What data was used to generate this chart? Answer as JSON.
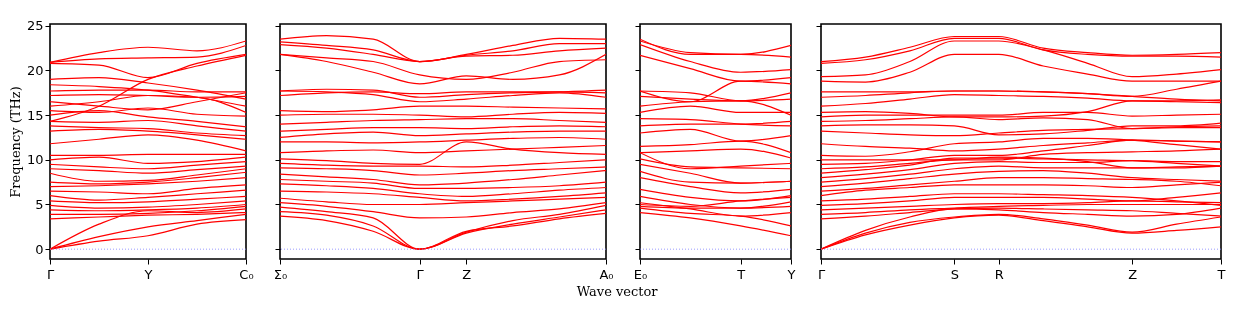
{
  "chart_data": [
    {
      "type": "line",
      "ylabel": "Frequency (THz)",
      "categories": [
        "Γ",
        null,
        "Y",
        null,
        "C₀"
      ],
      "ylim": [
        -1.1,
        25.2
      ],
      "yticks": [
        0,
        5,
        10,
        15,
        20,
        25
      ],
      "grid": false,
      "ref_lines": [
        {
          "axis": "y",
          "value": 0,
          "color": "#8080ff",
          "line_style": "dotted"
        }
      ],
      "series": [
        {
          "color": "#ff0000",
          "values": [
            0,
            0.9,
            1.5,
            2.8,
            3.3
          ]
        },
        {
          "color": "#ff0000",
          "values": [
            0,
            1.4,
            2.5,
            3.2,
            3.9
          ]
        },
        {
          "color": "#ff0000",
          "values": [
            0,
            2.8,
            4.3,
            4.1,
            4.5
          ]
        },
        {
          "color": "#ff0000",
          "values": [
            3.4,
            3.6,
            3.8,
            3.9,
            4.1
          ]
        },
        {
          "color": "#ff0000",
          "values": [
            3.9,
            3.9,
            4.0,
            4.3,
            4.8
          ]
        },
        {
          "color": "#ff0000",
          "values": [
            4.4,
            4.3,
            4.4,
            4.6,
            5.0
          ]
        },
        {
          "color": "#ff0000",
          "values": [
            4.9,
            4.6,
            4.7,
            5.0,
            5.4
          ]
        },
        {
          "color": "#ff0000",
          "values": [
            5.4,
            5.2,
            5.3,
            5.6,
            5.9
          ]
        },
        {
          "color": "#ff0000",
          "values": [
            6.0,
            5.5,
            5.8,
            6.2,
            6.6
          ]
        },
        {
          "color": "#ff0000",
          "values": [
            6.5,
            6.4,
            6.2,
            6.8,
            7.2
          ]
        },
        {
          "color": "#ff0000",
          "values": [
            7.0,
            7.1,
            7.3,
            7.6,
            8.0
          ]
        },
        {
          "color": "#ff0000",
          "values": [
            7.5,
            7.3,
            7.5,
            8.0,
            8.6
          ]
        },
        {
          "color": "#ff0000",
          "values": [
            8.5,
            7.6,
            7.7,
            8.3,
            9.0
          ]
        },
        {
          "color": "#ff0000",
          "values": [
            9.0,
            8.8,
            8.5,
            8.9,
            9.3
          ]
        },
        {
          "color": "#ff0000",
          "values": [
            9.5,
            9.2,
            9.0,
            9.4,
            9.8
          ]
        },
        {
          "color": "#ff0000",
          "values": [
            10.0,
            10.3,
            9.6,
            9.8,
            10.3
          ]
        },
        {
          "color": "#ff0000",
          "values": [
            10.5,
            10.5,
            10.6,
            10.6,
            10.6
          ]
        },
        {
          "color": "#ff0000",
          "values": [
            11.8,
            12.3,
            12.8,
            12.2,
            11.0
          ]
        },
        {
          "color": "#ff0000",
          "values": [
            13.2,
            13.4,
            13.2,
            12.8,
            12.3
          ]
        },
        {
          "color": "#ff0000",
          "values": [
            13.8,
            13.6,
            13.5,
            13.0,
            12.7
          ]
        },
        {
          "color": "#ff0000",
          "values": [
            14.3,
            14.2,
            14.4,
            13.8,
            13.2
          ]
        },
        {
          "color": "#ff0000",
          "values": [
            14.3,
            16.0,
            19.0,
            20.5,
            21.7
          ]
        },
        {
          "color": "#ff0000",
          "values": [
            15.0,
            15.5,
            14.8,
            14.3,
            13.7
          ]
        },
        {
          "color": "#ff0000",
          "values": [
            15.5,
            15.3,
            15.8,
            15.1,
            14.9
          ]
        },
        {
          "color": "#ff0000",
          "values": [
            16.0,
            16.5,
            17.2,
            17.0,
            15.3
          ]
        },
        {
          "color": "#ff0000",
          "values": [
            16.5,
            16.0,
            15.6,
            16.5,
            17.5
          ]
        },
        {
          "color": "#ff0000",
          "values": [
            17.2,
            17.3,
            17.2,
            17.0,
            17.1
          ]
        },
        {
          "color": "#ff0000",
          "values": [
            17.7,
            17.8,
            17.8,
            17.6,
            17.6
          ]
        },
        {
          "color": "#ff0000",
          "values": [
            18.4,
            18.2,
            17.8,
            17.0,
            16.0
          ]
        },
        {
          "color": "#ff0000",
          "values": [
            19.0,
            19.2,
            18.6,
            17.8,
            16.8
          ]
        },
        {
          "color": "#ff0000",
          "values": [
            20.8,
            20.6,
            19.2,
            20.8,
            21.8
          ]
        },
        {
          "color": "#ff0000",
          "values": [
            20.9,
            21.3,
            21.4,
            21.5,
            22.8
          ]
        },
        {
          "color": "#ff0000",
          "values": [
            20.9,
            22.0,
            22.6,
            22.2,
            23.3
          ]
        }
      ]
    },
    {
      "type": "line",
      "xlabel": "Wave vector",
      "categories": [
        "Σ₀",
        null,
        null,
        "Γ",
        "Z",
        null,
        null,
        "A₀"
      ],
      "ylim": [
        -1.1,
        25.2
      ],
      "yticks": [
        0,
        5,
        10,
        15,
        20,
        25
      ],
      "tick_labels": "x",
      "grid": false,
      "ref_lines": [
        {
          "axis": "y",
          "value": 0,
          "color": "#8080ff",
          "line_style": "dotted"
        }
      ],
      "series": [
        {
          "color": "#ff0000",
          "values": [
            3.7,
            3.2,
            2.0,
            0,
            2.0,
            2.6,
            3.4,
            4.0
          ]
        },
        {
          "color": "#ff0000",
          "values": [
            4.2,
            3.8,
            2.6,
            0,
            1.8,
            2.8,
            3.6,
            4.4
          ]
        },
        {
          "color": "#ff0000",
          "values": [
            4.7,
            4.2,
            3.5,
            0,
            1.9,
            3.2,
            3.9,
            4.9
          ]
        },
        {
          "color": "#ff0000",
          "values": [
            5.2,
            4.8,
            4.2,
            3.5,
            3.6,
            4.1,
            4.5,
            5.2
          ]
        },
        {
          "color": "#ff0000",
          "values": [
            5.7,
            5.3,
            5.0,
            5.0,
            5.2,
            5.4,
            5.6,
            5.8
          ]
        },
        {
          "color": "#ff0000",
          "values": [
            6.5,
            6.4,
            6.2,
            5.8,
            5.4,
            5.6,
            5.9,
            6.3
          ]
        },
        {
          "color": "#ff0000",
          "values": [
            7.3,
            7.1,
            6.8,
            6.2,
            5.9,
            6.2,
            6.6,
            6.9
          ]
        },
        {
          "color": "#ff0000",
          "values": [
            7.8,
            7.6,
            7.4,
            6.8,
            6.8,
            6.9,
            7.1,
            7.5
          ]
        },
        {
          "color": "#ff0000",
          "values": [
            8.4,
            8.1,
            7.8,
            7.2,
            7.4,
            7.8,
            8.3,
            8.8
          ]
        },
        {
          "color": "#ff0000",
          "values": [
            9.1,
            9.0,
            8.8,
            8.3,
            8.5,
            8.8,
            9.0,
            9.2
          ]
        },
        {
          "color": "#ff0000",
          "values": [
            9.6,
            9.4,
            9.3,
            9.3,
            9.2,
            9.4,
            9.7,
            10.0
          ]
        },
        {
          "color": "#ff0000",
          "values": [
            10.1,
            9.9,
            9.6,
            9.5,
            12.0,
            11.2,
            10.8,
            10.6
          ]
        },
        {
          "color": "#ff0000",
          "values": [
            10.8,
            11.0,
            11.1,
            10.8,
            11.0,
            11.2,
            11.4,
            11.6
          ]
        },
        {
          "color": "#ff0000",
          "values": [
            12.0,
            12.0,
            11.9,
            12.0,
            12.2,
            12.4,
            12.5,
            12.3
          ]
        },
        {
          "color": "#ff0000",
          "values": [
            12.5,
            12.9,
            13.1,
            12.7,
            12.9,
            13.1,
            13.2,
            13.2
          ]
        },
        {
          "color": "#ff0000",
          "values": [
            13.2,
            13.4,
            13.6,
            13.6,
            13.5,
            13.7,
            13.8,
            13.7
          ]
        },
        {
          "color": "#ff0000",
          "values": [
            14.0,
            14.2,
            14.4,
            14.5,
            14.6,
            14.6,
            14.4,
            14.2
          ]
        },
        {
          "color": "#ff0000",
          "values": [
            15.0,
            15.1,
            15.1,
            15.0,
            14.8,
            15.1,
            15.3,
            15.2
          ]
        },
        {
          "color": "#ff0000",
          "values": [
            15.5,
            15.4,
            15.6,
            16.0,
            16.0,
            15.9,
            15.8,
            15.7
          ]
        },
        {
          "color": "#ff0000",
          "values": [
            17.7,
            17.6,
            17.3,
            16.5,
            16.8,
            17.2,
            17.5,
            17.0
          ]
        },
        {
          "color": "#ff0000",
          "values": [
            17.7,
            17.9,
            17.8,
            17.0,
            17.3,
            17.5,
            17.6,
            17.8
          ]
        },
        {
          "color": "#ff0000",
          "values": [
            17.2,
            17.5,
            17.6,
            17.4,
            17.6,
            17.6,
            17.6,
            17.5
          ]
        },
        {
          "color": "#ff0000",
          "values": [
            21.8,
            21.0,
            19.8,
            18.5,
            19.4,
            19.0,
            19.5,
            21.8
          ]
        },
        {
          "color": "#ff0000",
          "values": [
            21.8,
            21.4,
            21.0,
            19.5,
            19.0,
            19.8,
            21.0,
            21.2
          ]
        },
        {
          "color": "#ff0000",
          "values": [
            22.9,
            22.5,
            21.8,
            21.0,
            21.6,
            21.7,
            22.2,
            22.5
          ]
        },
        {
          "color": "#ff0000",
          "values": [
            23.2,
            22.8,
            22.3,
            21.0,
            21.7,
            22.2,
            23.0,
            23.0
          ]
        },
        {
          "color": "#ff0000",
          "values": [
            23.5,
            23.9,
            23.5,
            21.0,
            21.8,
            22.8,
            23.6,
            23.5
          ]
        }
      ]
    },
    {
      "type": "line",
      "categories": [
        "E₀",
        null,
        "T",
        "Y"
      ],
      "ylim": [
        -1.1,
        25.2
      ],
      "yticks": [
        0,
        5,
        10,
        15,
        20,
        25
      ],
      "tick_labels": "x",
      "grid": false,
      "ref_lines": [
        {
          "axis": "y",
          "value": 0,
          "color": "#8080ff",
          "line_style": "dotted"
        }
      ],
      "series": [
        {
          "color": "#ff0000",
          "values": [
            4.1,
            3.5,
            2.6,
            1.5
          ]
        },
        {
          "color": "#ff0000",
          "values": [
            4.6,
            4.0,
            3.7,
            2.6
          ]
        },
        {
          "color": "#ff0000",
          "values": [
            5.2,
            4.5,
            3.7,
            4.1
          ]
        },
        {
          "color": "#ff0000",
          "values": [
            5.9,
            5.0,
            4.6,
            4.8
          ]
        },
        {
          "color": "#ff0000",
          "values": [
            4.8,
            4.6,
            4.6,
            5.3
          ]
        },
        {
          "color": "#ff0000",
          "values": [
            5.0,
            4.8,
            5.4,
            5.8
          ]
        },
        {
          "color": "#ff0000",
          "values": [
            6.7,
            5.8,
            5.4,
            6.0
          ]
        },
        {
          "color": "#ff0000",
          "values": [
            8.0,
            7.0,
            6.3,
            6.7
          ]
        },
        {
          "color": "#ff0000",
          "values": [
            8.7,
            7.5,
            7.4,
            7.6
          ]
        },
        {
          "color": "#ff0000",
          "values": [
            9.5,
            8.5,
            7.4,
            7.6
          ]
        },
        {
          "color": "#ff0000",
          "values": [
            10.1,
            9.2,
            9.1,
            9.0
          ]
        },
        {
          "color": "#ff0000",
          "values": [
            10.8,
            9.0,
            9.3,
            9.6
          ]
        },
        {
          "color": "#ff0000",
          "values": [
            10.8,
            11.0,
            11.2,
            10.2
          ]
        },
        {
          "color": "#ff0000",
          "values": [
            11.5,
            11.7,
            12.1,
            10.8
          ]
        },
        {
          "color": "#ff0000",
          "values": [
            13.0,
            13.4,
            12.1,
            12.7
          ]
        },
        {
          "color": "#ff0000",
          "values": [
            13.8,
            14.0,
            14.0,
            14.3
          ]
        },
        {
          "color": "#ff0000",
          "values": [
            14.6,
            14.5,
            14.0,
            13.8
          ]
        },
        {
          "color": "#ff0000",
          "values": [
            15.3,
            16.0,
            15.3,
            15.3
          ]
        },
        {
          "color": "#ff0000",
          "values": [
            16.0,
            16.5,
            16.6,
            15.0
          ]
        },
        {
          "color": "#ff0000",
          "values": [
            17.1,
            16.8,
            16.6,
            16.8
          ]
        },
        {
          "color": "#ff0000",
          "values": [
            17.7,
            17.5,
            16.6,
            17.5
          ]
        },
        {
          "color": "#ff0000",
          "values": [
            17.7,
            16.5,
            18.8,
            18.5
          ]
        },
        {
          "color": "#ff0000",
          "values": [
            21.7,
            20.2,
            18.8,
            19.2
          ]
        },
        {
          "color": "#ff0000",
          "values": [
            22.9,
            21.0,
            19.8,
            20.1
          ]
        },
        {
          "color": "#ff0000",
          "values": [
            23.5,
            21.8,
            21.8,
            21.5
          ]
        },
        {
          "color": "#ff0000",
          "values": [
            23.3,
            22.0,
            21.8,
            22.8
          ]
        }
      ]
    },
    {
      "type": "line",
      "categories": [
        "Γ",
        null,
        null,
        "S",
        "R",
        null,
        null,
        "Z",
        null,
        "T"
      ],
      "ylim": [
        -1.1,
        25.2
      ],
      "yticks": [
        0,
        5,
        10,
        15,
        20,
        25
      ],
      "tick_labels": "x",
      "grid": false,
      "ref_lines": [
        {
          "axis": "y",
          "value": 0,
          "color": "#8080ff",
          "line_style": "dotted"
        }
      ],
      "series": [
        {
          "color": "#ff0000",
          "values": [
            0,
            1.6,
            2.7,
            3.5,
            3.8,
            3.2,
            2.5,
            1.8,
            2.1,
            2.5
          ]
        },
        {
          "color": "#ff0000",
          "values": [
            0,
            1.8,
            3.0,
            3.6,
            3.9,
            3.4,
            2.7,
            1.9,
            2.8,
            3.6
          ]
        },
        {
          "color": "#ff0000",
          "values": [
            0,
            2.1,
            3.6,
            4.5,
            4.4,
            4.1,
            3.9,
            3.7,
            3.9,
            4.6
          ]
        },
        {
          "color": "#ff0000",
          "values": [
            3.4,
            3.7,
            4.1,
            4.5,
            4.6,
            4.5,
            4.4,
            4.3,
            4.0,
            3.7
          ]
        },
        {
          "color": "#ff0000",
          "values": [
            3.9,
            4.1,
            4.4,
            4.6,
            4.8,
            4.9,
            5.0,
            5.0,
            5.0,
            5.0
          ]
        },
        {
          "color": "#ff0000",
          "values": [
            4.4,
            4.6,
            4.8,
            5.0,
            5.1,
            5.1,
            5.2,
            5.4,
            5.3,
            5.2
          ]
        },
        {
          "color": "#ff0000",
          "values": [
            4.9,
            5.1,
            5.4,
            5.8,
            5.8,
            5.8,
            5.6,
            5.4,
            5.8,
            6.3
          ]
        },
        {
          "color": "#ff0000",
          "values": [
            5.4,
            5.6,
            5.9,
            6.2,
            6.2,
            6.1,
            6.0,
            5.8,
            5.4,
            4.9
          ]
        },
        {
          "color": "#ff0000",
          "values": [
            6.0,
            6.6,
            6.9,
            7.2,
            7.2,
            7.2,
            7.1,
            6.9,
            7.2,
            7.5
          ]
        },
        {
          "color": "#ff0000",
          "values": [
            6.5,
            6.8,
            7.2,
            7.6,
            8.0,
            8.0,
            7.9,
            7.8,
            7.6,
            7.1
          ]
        },
        {
          "color": "#ff0000",
          "values": [
            7.0,
            7.4,
            7.9,
            8.4,
            8.7,
            8.8,
            8.5,
            8.0,
            7.8,
            7.6
          ]
        },
        {
          "color": "#ff0000",
          "values": [
            7.5,
            7.9,
            8.4,
            9.0,
            9.3,
            9.1,
            9.1,
            9.1,
            9.2,
            9.3
          ]
        },
        {
          "color": "#ff0000",
          "values": [
            8.0,
            8.4,
            8.9,
            9.6,
            9.8,
            9.7,
            9.7,
            9.9,
            9.8,
            9.8
          ]
        },
        {
          "color": "#ff0000",
          "values": [
            8.5,
            8.9,
            9.4,
            10.2,
            10.2,
            10.1,
            10.0,
            9.9,
            9.6,
            9.3
          ]
        },
        {
          "color": "#ff0000",
          "values": [
            9.0,
            9.2,
            9.6,
            10.0,
            10.0,
            10.6,
            10.8,
            10.9,
            11.0,
            11.2
          ]
        },
        {
          "color": "#ff0000",
          "values": [
            9.5,
            9.6,
            10.0,
            10.5,
            10.5,
            11.0,
            11.6,
            12.2,
            12.1,
            12.0
          ]
        },
        {
          "color": "#ff0000",
          "values": [
            10.0,
            10.0,
            10.0,
            10.0,
            10.3,
            10.2,
            9.8,
            9.1,
            9.1,
            9.3
          ]
        },
        {
          "color": "#ff0000",
          "values": [
            10.5,
            10.4,
            10.9,
            11.8,
            12.0,
            12.4,
            12.4,
            12.2,
            11.7,
            11.2
          ]
        },
        {
          "color": "#ff0000",
          "values": [
            11.8,
            11.5,
            11.3,
            11.0,
            11.2,
            11.6,
            11.9,
            12.2,
            12.1,
            12.0
          ]
        },
        {
          "color": "#ff0000",
          "values": [
            13.2,
            13.0,
            12.8,
            12.7,
            13.0,
            13.3,
            13.4,
            13.5,
            13.6,
            13.6
          ]
        },
        {
          "color": "#ff0000",
          "values": [
            13.8,
            13.9,
            13.9,
            13.8,
            12.8,
            12.9,
            13.3,
            13.8,
            13.8,
            14.1
          ]
        },
        {
          "color": "#ff0000",
          "values": [
            14.3,
            14.4,
            14.6,
            14.8,
            14.5,
            14.7,
            14.5,
            13.5,
            13.7,
            13.8
          ]
        },
        {
          "color": "#ff0000",
          "values": [
            14.8,
            15.0,
            15.0,
            15.0,
            15.0,
            15.3,
            15.3,
            14.9,
            15.0,
            15.1
          ]
        },
        {
          "color": "#ff0000",
          "values": [
            15.3,
            15.4,
            15.2,
            14.8,
            14.8,
            14.9,
            15.4,
            16.6,
            16.5,
            16.4
          ]
        },
        {
          "color": "#ff0000",
          "values": [
            16.0,
            16.3,
            16.8,
            17.3,
            17.2,
            17.1,
            16.9,
            16.6,
            16.6,
            16.7
          ]
        },
        {
          "color": "#ff0000",
          "values": [
            17.0,
            17.2,
            17.5,
            17.7,
            17.7,
            17.6,
            17.4,
            17.1,
            17.9,
            18.8
          ]
        },
        {
          "color": "#ff0000",
          "values": [
            17.6,
            17.6,
            17.6,
            17.7,
            17.7,
            17.6,
            17.4,
            17.1,
            16.8,
            16.6
          ]
        },
        {
          "color": "#ff0000",
          "values": [
            18.8,
            18.7,
            19.8,
            21.8,
            21.8,
            20.5,
            19.6,
            18.8,
            18.8,
            18.8
          ]
        },
        {
          "color": "#ff0000",
          "values": [
            19.3,
            19.5,
            21.0,
            23.3,
            23.3,
            22.3,
            20.8,
            19.3,
            19.6,
            20.1
          ]
        },
        {
          "color": "#ff0000",
          "values": [
            20.8,
            21.2,
            22.2,
            23.6,
            23.6,
            22.3,
            21.8,
            21.6,
            21.6,
            21.5
          ]
        },
        {
          "color": "#ff0000",
          "values": [
            21.0,
            21.5,
            22.6,
            23.8,
            23.8,
            22.5,
            22.0,
            21.7,
            21.8,
            22.0
          ]
        }
      ]
    }
  ]
}
